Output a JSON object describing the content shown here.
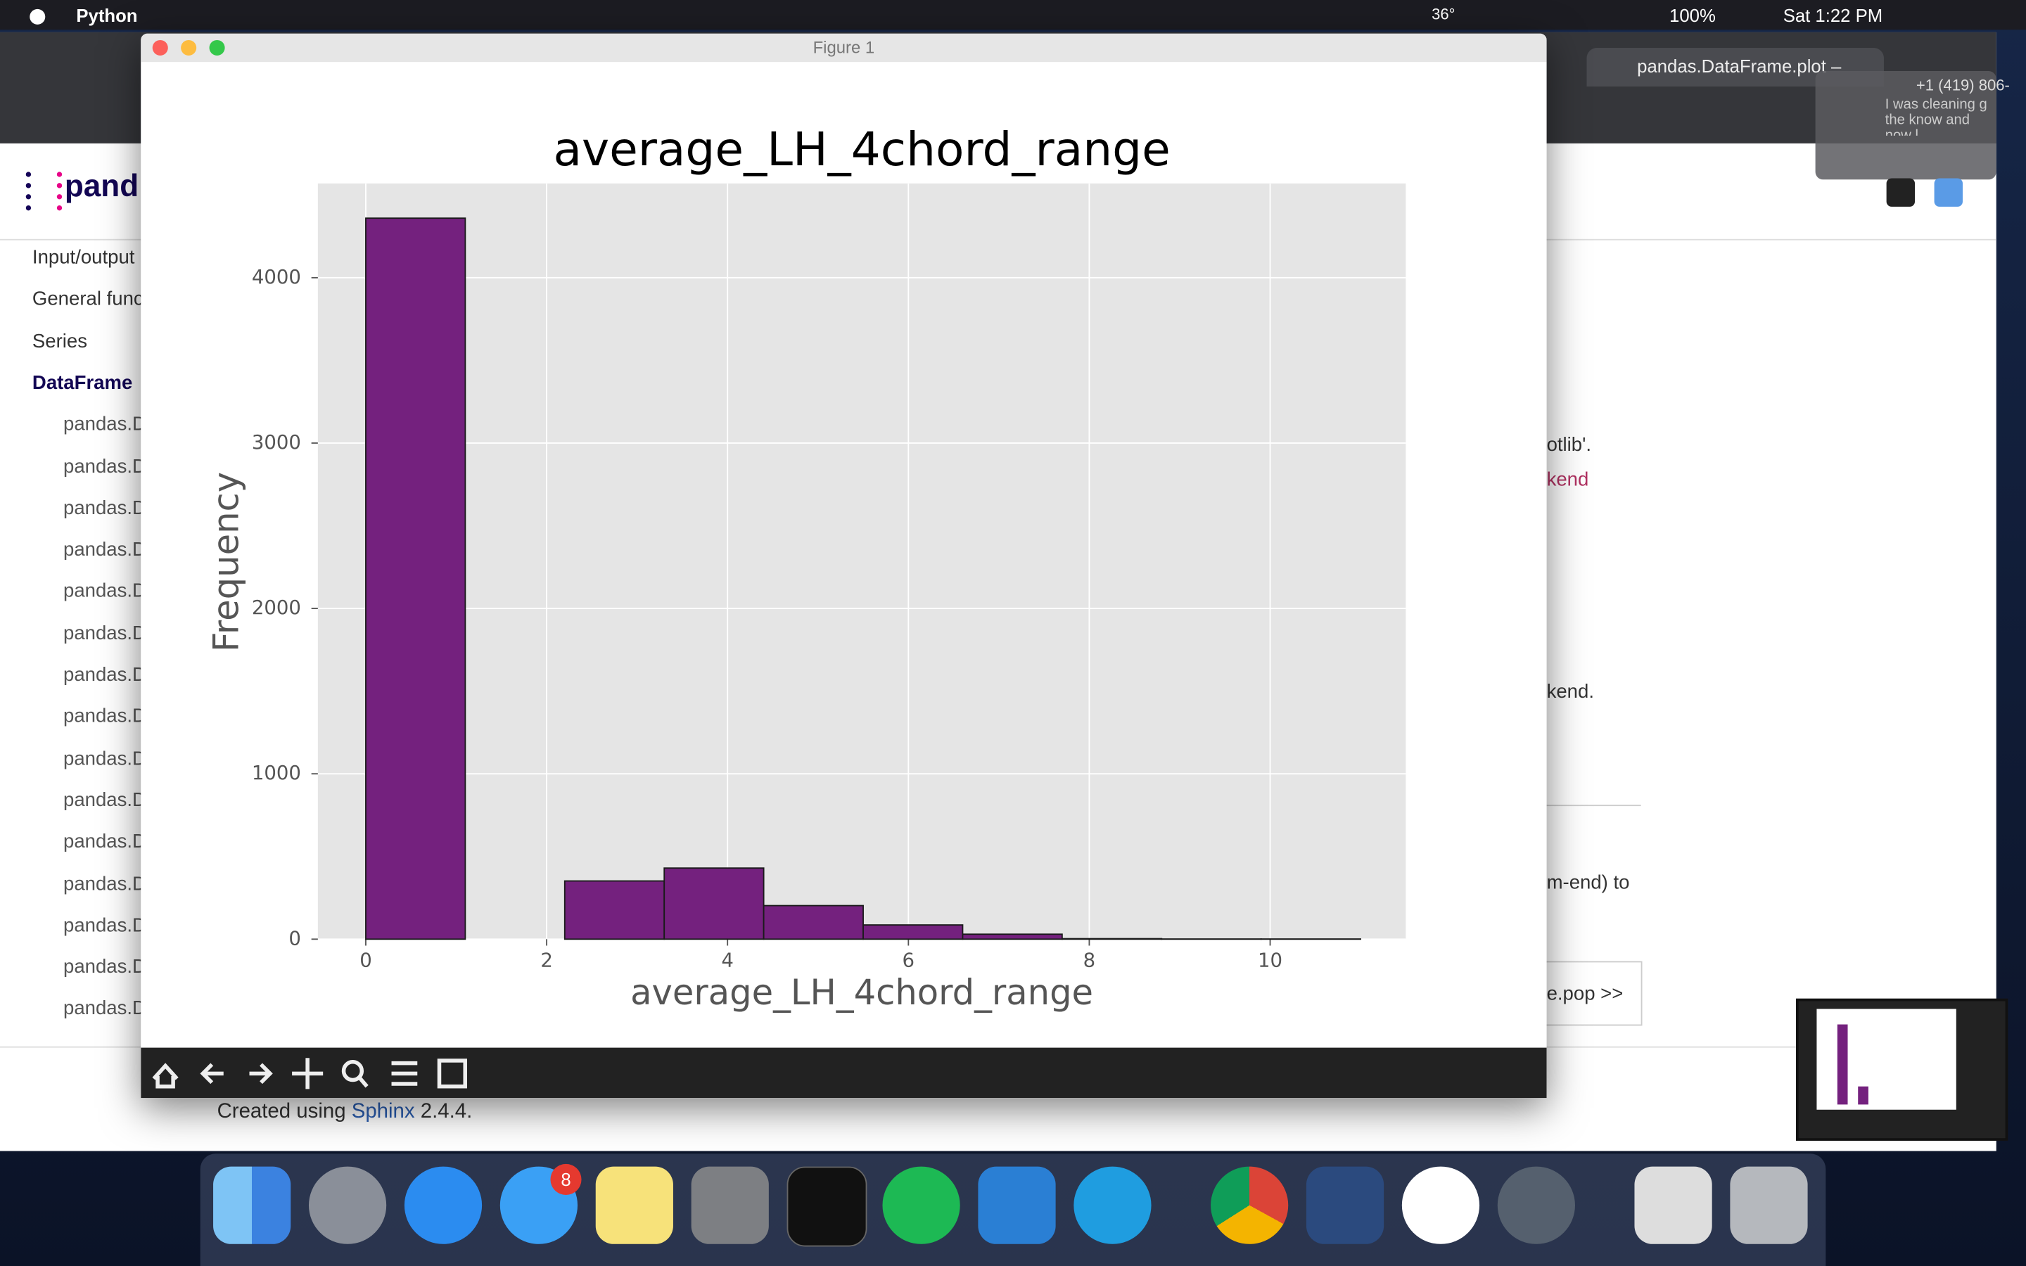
{
  "menu_bar": {
    "app": "Python",
    "temperature": "36°",
    "battery": "100%",
    "clock": "Sat 1:22 PM"
  },
  "browser": {
    "tab_title": "pandas.DataFrame.plot –",
    "notification": "+1 (419) 806-",
    "notification_text": "I was cleaning g the know and now l",
    "logo": "pand",
    "sidebar": [
      "Input/output",
      "General funct",
      "Series",
      "DataFrame",
      "pandas.D",
      "pandas.D",
      "pandas.D",
      "pandas.D",
      "pandas.D",
      "pandas.D",
      "pandas.D",
      "pandas.D",
      "pandas.D",
      "pandas.D",
      "pandas.D",
      "pandas.D",
      "pandas.D",
      "pandas.D",
      "pandas.D"
    ],
    "content_fragments": [
      "otlib'.",
      "kend",
      "kend.",
      "m-end) to",
      "e.pop >>"
    ],
    "footer": {
      "prefix": "Created using",
      "link": "Sphinx",
      "version": "2.4.4."
    }
  },
  "figure_window": {
    "title": "Figure 1"
  },
  "dock": {
    "badge": "8"
  },
  "chart_data": {
    "type": "histogram",
    "title": "average_LH_4chord_range",
    "x_label": "average_LH_4chord_range",
    "y_label": "Frequency",
    "bins": [
      0,
      1.1,
      2.2,
      3.3,
      4.4,
      5.5,
      6.6,
      7.7,
      8.8,
      9.9,
      11
    ],
    "values": [
      4360,
      0,
      352,
      430,
      203,
      86,
      30,
      3,
      1,
      1
    ],
    "color": "#74217e",
    "edge_color": "#1a1a1a",
    "xlim": [
      -0.53,
      11.5
    ],
    "ylim": [
      0,
      4570
    ],
    "xticks": [
      0,
      2,
      4,
      6,
      8,
      10
    ],
    "yticks": [
      0,
      1000,
      2000,
      3000,
      4000
    ],
    "grid": true
  }
}
